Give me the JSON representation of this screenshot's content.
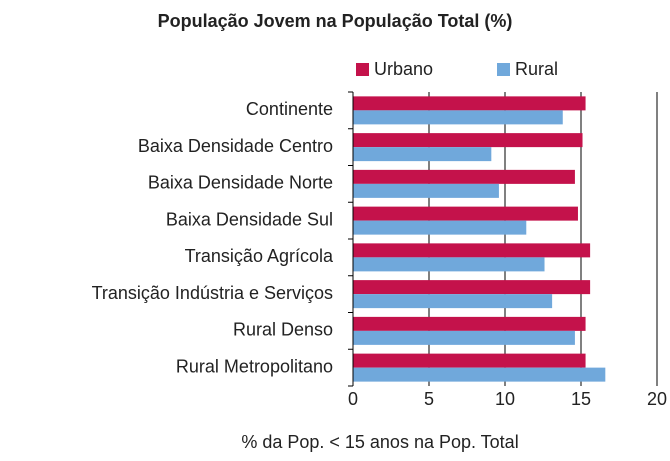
{
  "chart_data": {
    "type": "bar",
    "orientation": "horizontal",
    "title": "População Jovem na População Total (%)",
    "x_label": "% da Pop. < 15 anos na Pop. Total",
    "categories": [
      "Continente",
      "Baixa Densidade Centro",
      "Baixa Densidade Norte",
      "Baixa Densidade Sul",
      "Transição Agrícola",
      "Transição Indústria e Serviços",
      "Rural Denso",
      "Rural Metropolitano"
    ],
    "series": [
      {
        "name": "Urbano",
        "color": "#c4124b",
        "values": [
          15.3,
          15.1,
          14.6,
          14.8,
          15.6,
          15.6,
          15.3,
          15.3
        ]
      },
      {
        "name": "Rural",
        "color": "#70a8db",
        "values": [
          13.8,
          9.1,
          9.6,
          11.4,
          12.6,
          13.1,
          14.6,
          16.6
        ]
      }
    ],
    "xlim": [
      0,
      20
    ],
    "xticks": [
      0,
      5,
      10,
      15,
      20
    ],
    "grid": true,
    "legend": "top"
  }
}
